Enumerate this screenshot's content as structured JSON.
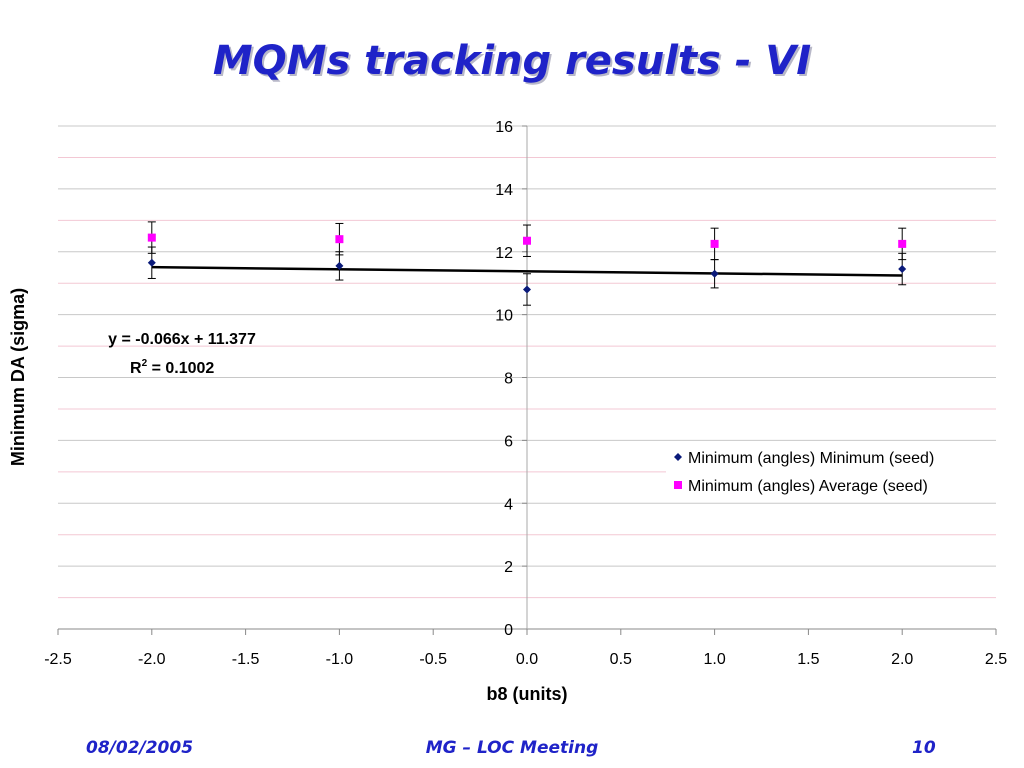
{
  "slide": {
    "title": "MQMs tracking results - VI",
    "footer_date": "08/02/2005",
    "footer_meeting": "MG – LOC Meeting",
    "page_number": "10"
  },
  "chart_data": {
    "type": "scatter",
    "xlabel": "b8 (units)",
    "ylabel": "Minimum DA (sigma)",
    "xlim": [
      -2.5,
      2.5
    ],
    "ylim": [
      0,
      16
    ],
    "x_ticks": [
      "-2.5",
      "-2.0",
      "-1.5",
      "-1.0",
      "-0.5",
      "0.0",
      "0.5",
      "1.0",
      "1.5",
      "2.0",
      "2.5"
    ],
    "y_ticks": [
      "0",
      "2",
      "4",
      "6",
      "8",
      "10",
      "12",
      "14",
      "16"
    ],
    "grid": true,
    "legend_position": "right",
    "series": [
      {
        "name": "Minimum (angles) Minimum (seed)",
        "color": "#0a1a7a",
        "marker": "diamond",
        "x": [
          -2.0,
          -1.0,
          0.0,
          1.0,
          2.0
        ],
        "y": [
          11.65,
          11.55,
          10.8,
          11.3,
          11.45
        ],
        "err": [
          0.5,
          0.45,
          0.5,
          0.45,
          0.5
        ]
      },
      {
        "name": "Minimum (angles) Average (seed)",
        "color": "#ff00ff",
        "marker": "square",
        "x": [
          -2.0,
          -1.0,
          0.0,
          1.0,
          2.0
        ],
        "y": [
          12.45,
          12.4,
          12.35,
          12.25,
          12.25
        ],
        "err": [
          0.5,
          0.5,
          0.5,
          0.5,
          0.5
        ]
      }
    ],
    "trendline": {
      "slope": -0.066,
      "intercept": 11.377,
      "x_range": [
        -2.0,
        2.0
      ],
      "color": "#000000",
      "equation_label": "y = -0.066x + 11.377",
      "r2_label_prefix": "R",
      "r2_label_sup": "2",
      "r2_label_value": " = 0.1002"
    }
  }
}
